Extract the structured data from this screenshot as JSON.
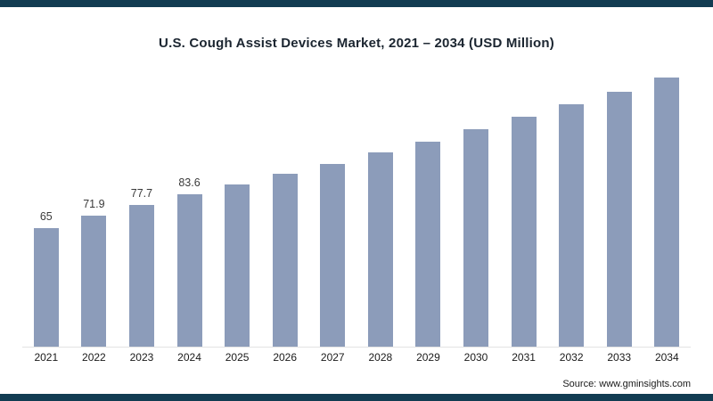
{
  "frame": {
    "accent_color": "#123c52"
  },
  "title": "U.S. Cough Assist Devices Market, 2021 – 2034 (USD Million)",
  "source": "Source: www.gminsights.com",
  "chart_data": {
    "type": "bar",
    "title": "U.S. Cough Assist Devices Market, 2021 – 2034 (USD Million)",
    "categories": [
      "2021",
      "2022",
      "2023",
      "2024",
      "2025",
      "2026",
      "2027",
      "2028",
      "2029",
      "2030",
      "2031",
      "2032",
      "2033",
      "2034"
    ],
    "values": [
      65,
      71.9,
      77.7,
      83.6,
      88.7,
      94.5,
      100.2,
      106.1,
      112.4,
      119.0,
      126.0,
      132.6,
      139.7,
      147.2
    ],
    "data_labels": [
      "65",
      "71.9",
      "77.7",
      "83.6",
      "",
      "",
      "",
      "",
      "",
      "",
      "",
      "",
      "",
      ""
    ],
    "xlabel": "",
    "ylabel": "USD Million",
    "ylim": [
      0,
      150
    ],
    "grid": false,
    "legend": false,
    "bar_color": "#8c9cba"
  }
}
